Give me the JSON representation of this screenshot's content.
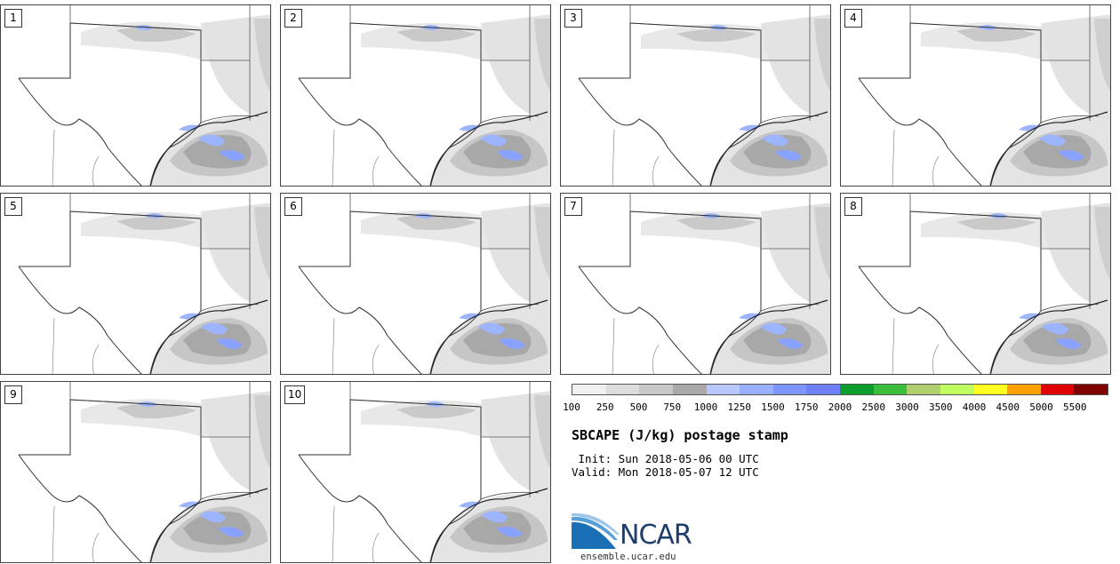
{
  "panels": [
    {
      "label": "1"
    },
    {
      "label": "2"
    },
    {
      "label": "3"
    },
    {
      "label": "4"
    },
    {
      "label": "5"
    },
    {
      "label": "6"
    },
    {
      "label": "7"
    },
    {
      "label": "8"
    },
    {
      "label": "9"
    },
    {
      "label": "10"
    }
  ],
  "colorbar": {
    "colors": [
      "#f0f0f0",
      "#dcdcdc",
      "#c8c8c8",
      "#a9a9a9",
      "#b8c8ff",
      "#98b0ff",
      "#8096ff",
      "#7080f8",
      "#0e9e2e",
      "#3cbe3c",
      "#b0d070",
      "#c0ff60",
      "#ffff20",
      "#ffa000",
      "#e00000",
      "#800000"
    ],
    "ticks": [
      "100",
      "250",
      "500",
      "750",
      "1000",
      "1250",
      "1500",
      "1750",
      "2000",
      "2500",
      "3000",
      "3500",
      "4000",
      "4500",
      "5000",
      "5500"
    ]
  },
  "title": "SBCAPE (J/kg) postage stamp",
  "init": " Init: Sun 2018-05-06 00 UTC",
  "valid": "Valid: Mon 2018-05-07 12 UTC",
  "logo": {
    "text": "NCAR",
    "site": "ensemble.ucar.edu",
    "icon": "ncar-logo-icon"
  }
}
